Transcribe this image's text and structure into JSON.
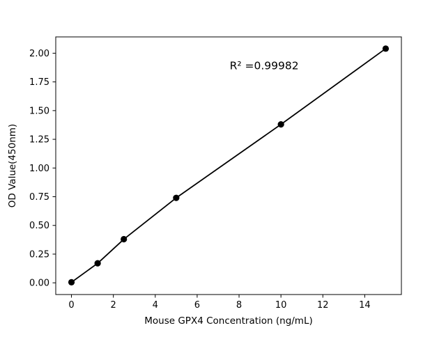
{
  "figure": {
    "background": "#ffffff"
  },
  "chart_data": {
    "type": "scatter",
    "title": "",
    "xlabel": "Mouse GPX4 Concentration (ng/mL)",
    "ylabel": "OD Value(450nm)",
    "annotation": "R² =0.99982",
    "x": [
      0,
      1.25,
      2.5,
      5,
      10,
      15
    ],
    "y": [
      0.005,
      0.17,
      0.38,
      0.74,
      1.38,
      2.04
    ],
    "xlim": [
      -0.75,
      15.75
    ],
    "ylim": [
      -0.102,
      2.142
    ],
    "x_ticks": [
      0,
      2,
      4,
      6,
      8,
      10,
      12,
      14
    ],
    "y_ticks": [
      0.0,
      0.25,
      0.5,
      0.75,
      1.0,
      1.25,
      1.5,
      1.75,
      2.0
    ],
    "line_color": "#000000",
    "marker_color": "#000000",
    "frame_color": "#000000",
    "grid": false,
    "legend": null,
    "marker": "circle",
    "connect_points": true
  }
}
